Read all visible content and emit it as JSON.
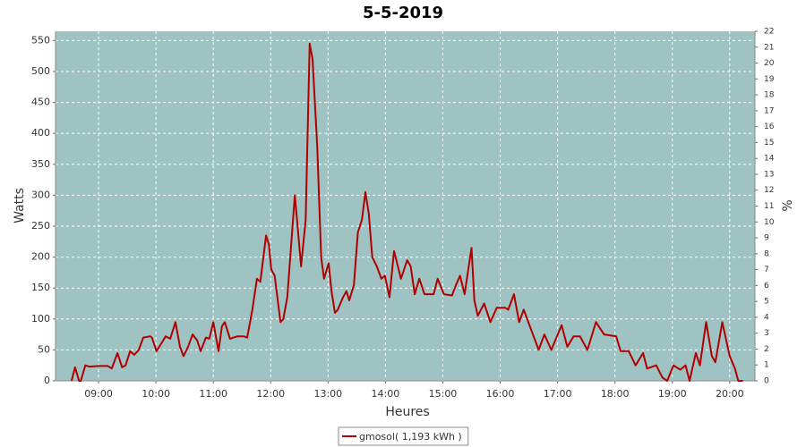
{
  "chart_data": {
    "type": "line",
    "title": "5-5-2019",
    "xlabel": "Heures",
    "ylabel": "Watts",
    "y2label": "%",
    "x": [
      8.53,
      8.59,
      8.66,
      8.69,
      8.77,
      8.84,
      9.0,
      9.16,
      9.23,
      9.33,
      9.41,
      9.47,
      9.55,
      9.62,
      9.7,
      9.78,
      9.9,
      9.93,
      10.01,
      10.09,
      10.17,
      10.25,
      10.34,
      10.42,
      10.48,
      10.56,
      10.64,
      10.72,
      10.78,
      10.87,
      10.93,
      11.0,
      11.09,
      11.15,
      11.2,
      11.29,
      11.42,
      11.53,
      11.59,
      11.68,
      11.76,
      11.82,
      11.92,
      11.97,
      12.01,
      12.07,
      12.17,
      12.22,
      12.29,
      12.42,
      12.46,
      12.53,
      12.61,
      12.68,
      12.73,
      12.81,
      12.88,
      12.93,
      13.01,
      13.06,
      13.12,
      13.17,
      13.26,
      13.32,
      13.37,
      13.45,
      13.52,
      13.59,
      13.65,
      13.71,
      13.77,
      13.85,
      13.93,
      13.99,
      14.07,
      14.15,
      14.27,
      14.38,
      14.44,
      14.51,
      14.59,
      14.68,
      14.84,
      14.91,
      15.02,
      15.16,
      15.23,
      15.3,
      15.38,
      15.5,
      15.55,
      15.61,
      15.72,
      15.83,
      15.94,
      16.09,
      16.14,
      16.24,
      16.33,
      16.41,
      16.53,
      16.67,
      16.77,
      16.89,
      17.07,
      17.17,
      17.28,
      17.39,
      17.52,
      17.67,
      17.81,
      18.02,
      18.1,
      18.24,
      18.36,
      18.49,
      18.56,
      18.72,
      18.83,
      18.91,
      19.02,
      19.14,
      19.23,
      19.3,
      19.41,
      19.48,
      19.59,
      19.69,
      19.75,
      19.87,
      20.0,
      20.09,
      20.15,
      20.23
    ],
    "series": [
      {
        "name": "gmosol( 1,193 kWh )",
        "color": "#b00000",
        "values": [
          0,
          22,
          0,
          0,
          25,
          23,
          24,
          24,
          20,
          45,
          22,
          25,
          48,
          42,
          50,
          70,
          72,
          70,
          48,
          60,
          72,
          68,
          95,
          55,
          40,
          55,
          75,
          65,
          48,
          70,
          68,
          95,
          48,
          88,
          95,
          68,
          72,
          72,
          70,
          115,
          165,
          160,
          235,
          220,
          180,
          170,
          95,
          100,
          135,
          300,
          260,
          185,
          260,
          545,
          520,
          380,
          200,
          165,
          190,
          145,
          110,
          115,
          135,
          145,
          130,
          155,
          240,
          260,
          305,
          270,
          200,
          185,
          165,
          170,
          135,
          210,
          165,
          195,
          185,
          140,
          165,
          140,
          140,
          165,
          140,
          138,
          155,
          170,
          140,
          215,
          130,
          105,
          125,
          95,
          118,
          118,
          115,
          140,
          95,
          115,
          85,
          50,
          75,
          50,
          90,
          55,
          72,
          72,
          50,
          95,
          75,
          72,
          48,
          48,
          25,
          45,
          20,
          25,
          5,
          0,
          25,
          18,
          25,
          0,
          45,
          25,
          95,
          40,
          30,
          95,
          40,
          20,
          0,
          0
        ]
      }
    ],
    "xlim": [
      8.25,
      20.44
    ],
    "xticks": [
      {
        "value": 9,
        "label": "09:00"
      },
      {
        "value": 10,
        "label": "10:00"
      },
      {
        "value": 11,
        "label": "11:00"
      },
      {
        "value": 12,
        "label": "12:00"
      },
      {
        "value": 13,
        "label": "13:00"
      },
      {
        "value": 14,
        "label": "14:00"
      },
      {
        "value": 15,
        "label": "15:00"
      },
      {
        "value": 16,
        "label": "16:00"
      },
      {
        "value": 17,
        "label": "17:00"
      },
      {
        "value": 18,
        "label": "18:00"
      },
      {
        "value": 19,
        "label": "19:00"
      },
      {
        "value": 20,
        "label": "20:00"
      }
    ],
    "ylim": [
      0,
      565
    ],
    "yticks": [
      0,
      50,
      100,
      150,
      200,
      250,
      300,
      350,
      400,
      450,
      500,
      550
    ],
    "y2lim": [
      0,
      22
    ],
    "y2ticks": [
      0,
      1,
      2,
      3,
      4,
      5,
      6,
      7,
      8,
      9,
      10,
      11,
      12,
      13,
      14,
      15,
      16,
      17,
      18,
      19,
      20,
      21,
      22
    ],
    "grid": true,
    "legend": "bottom",
    "background": "#9fc3c3"
  }
}
